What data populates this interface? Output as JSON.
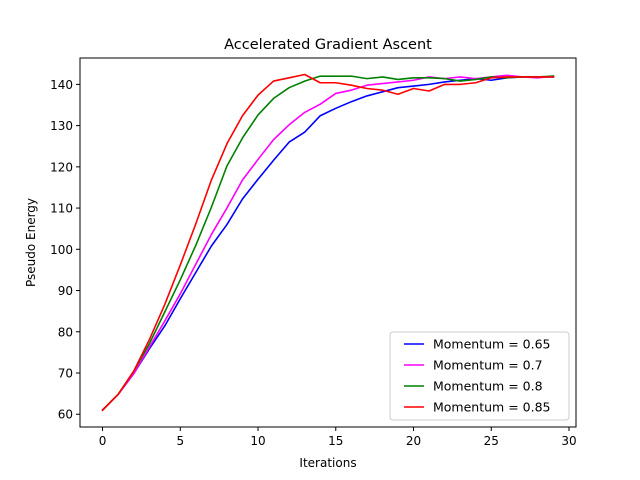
{
  "chart_data": {
    "type": "line",
    "title": "Accelerated Gradient Ascent",
    "xlabel": "Iterations",
    "ylabel": "Pseudo Energy",
    "xlim": [
      -1.45,
      30.45
    ],
    "ylim": [
      56.9,
      146.4
    ],
    "xticks": [
      0,
      5,
      10,
      15,
      20,
      25,
      30
    ],
    "yticks": [
      60,
      70,
      80,
      90,
      100,
      110,
      120,
      130,
      140
    ],
    "grid": false,
    "legend_position": "lower right",
    "x": [
      0,
      1,
      2,
      3,
      4,
      5,
      6,
      7,
      8,
      9,
      10,
      11,
      12,
      13,
      14,
      15,
      16,
      17,
      18,
      19,
      20,
      21,
      22,
      23,
      24,
      25,
      26,
      27,
      28,
      29
    ],
    "series": [
      {
        "name": "Momentum = 0.65",
        "color": "#0000ff",
        "values": [
          61.0,
          64.8,
          69.8,
          75.8,
          81.4,
          88.0,
          94.4,
          100.8,
          106.0,
          112.2,
          117.0,
          121.6,
          126.0,
          128.4,
          132.4,
          134.2,
          135.8,
          137.2,
          138.2,
          139.2,
          139.6,
          140.0,
          140.6,
          141.0,
          141.4,
          141.0,
          141.6,
          141.8,
          141.8,
          141.8
        ]
      },
      {
        "name": "Momentum = 0.7",
        "color": "#ff00ff",
        "values": [
          61.0,
          64.8,
          69.8,
          76.2,
          82.6,
          89.2,
          96.4,
          103.6,
          110.0,
          116.8,
          121.8,
          126.6,
          130.2,
          133.2,
          135.2,
          137.8,
          138.6,
          139.8,
          140.2,
          140.6,
          141.0,
          141.8,
          141.4,
          141.8,
          141.4,
          141.8,
          142.2,
          141.8,
          141.6,
          142.0
        ]
      },
      {
        "name": "Momentum = 0.8",
        "color": "#008000",
        "values": [
          61.0,
          64.8,
          70.4,
          77.0,
          84.8,
          92.6,
          101.0,
          110.2,
          120.2,
          127.0,
          132.6,
          136.6,
          139.2,
          140.8,
          142.0,
          142.0,
          142.0,
          141.4,
          141.8,
          141.2,
          141.6,
          141.6,
          141.4,
          140.8,
          141.2,
          141.8,
          141.6,
          141.8,
          141.8,
          142.0
        ]
      },
      {
        "name": "Momentum = 0.85",
        "color": "#ff0000",
        "values": [
          61.0,
          64.8,
          70.4,
          78.0,
          86.6,
          96.2,
          106.2,
          116.8,
          125.6,
          132.4,
          137.4,
          140.8,
          141.6,
          142.4,
          140.4,
          140.4,
          139.8,
          139.0,
          138.6,
          137.6,
          139.0,
          138.4,
          140.0,
          140.0,
          140.4,
          141.6,
          141.8,
          141.8,
          141.8,
          141.8
        ]
      }
    ]
  }
}
